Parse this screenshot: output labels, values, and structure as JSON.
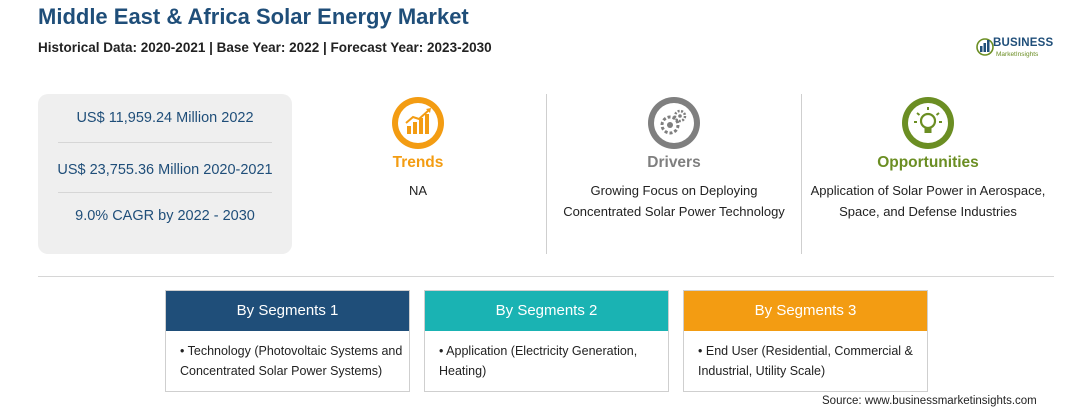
{
  "title": "Middle East & Africa Solar Energy Market",
  "subtitle": "Historical Data: 2020-2021 | Base Year: 2022 | Forecast Year: 2023-2030",
  "logo": {
    "name": "BUSINESS",
    "sub": "MarketInsights",
    "icon": "globe-chart-logo-icon"
  },
  "stats": [
    "US$ 11,959.24 Million 2022",
    "US$ 23,755.36 Million 2020-2021",
    "9.0% CAGR by 2022 - 2030"
  ],
  "columns": {
    "trends": {
      "heading": "Trends",
      "text": "NA",
      "color": "#f39c12",
      "icon": "growth-chart-icon"
    },
    "drivers": {
      "heading": "Drivers",
      "text": "Growing Focus on Deploying Concentrated Solar Power Technology",
      "color": "#7f7f7f",
      "icon": "gears-icon"
    },
    "opportunities": {
      "heading": "Opportunities",
      "text": "Application of Solar Power in Aerospace, Space, and Defense Industries",
      "color": "#6b8e23",
      "icon": "lightbulb-icon"
    }
  },
  "segments": [
    {
      "label": "By Segments 1",
      "item": "Technology (Photovoltaic Systems and Concentrated Solar Power Systems)",
      "color": "#1f4e79"
    },
    {
      "label": "By Segments 2",
      "item": "Application (Electricity Generation, Heating)",
      "color": "#1ab3b3"
    },
    {
      "label": "By Segments 3",
      "item": "End User (Residential, Commercial & Industrial, Utility Scale)",
      "color": "#f39c12"
    }
  ],
  "source": "Source: www.businessmarketinsights.com"
}
